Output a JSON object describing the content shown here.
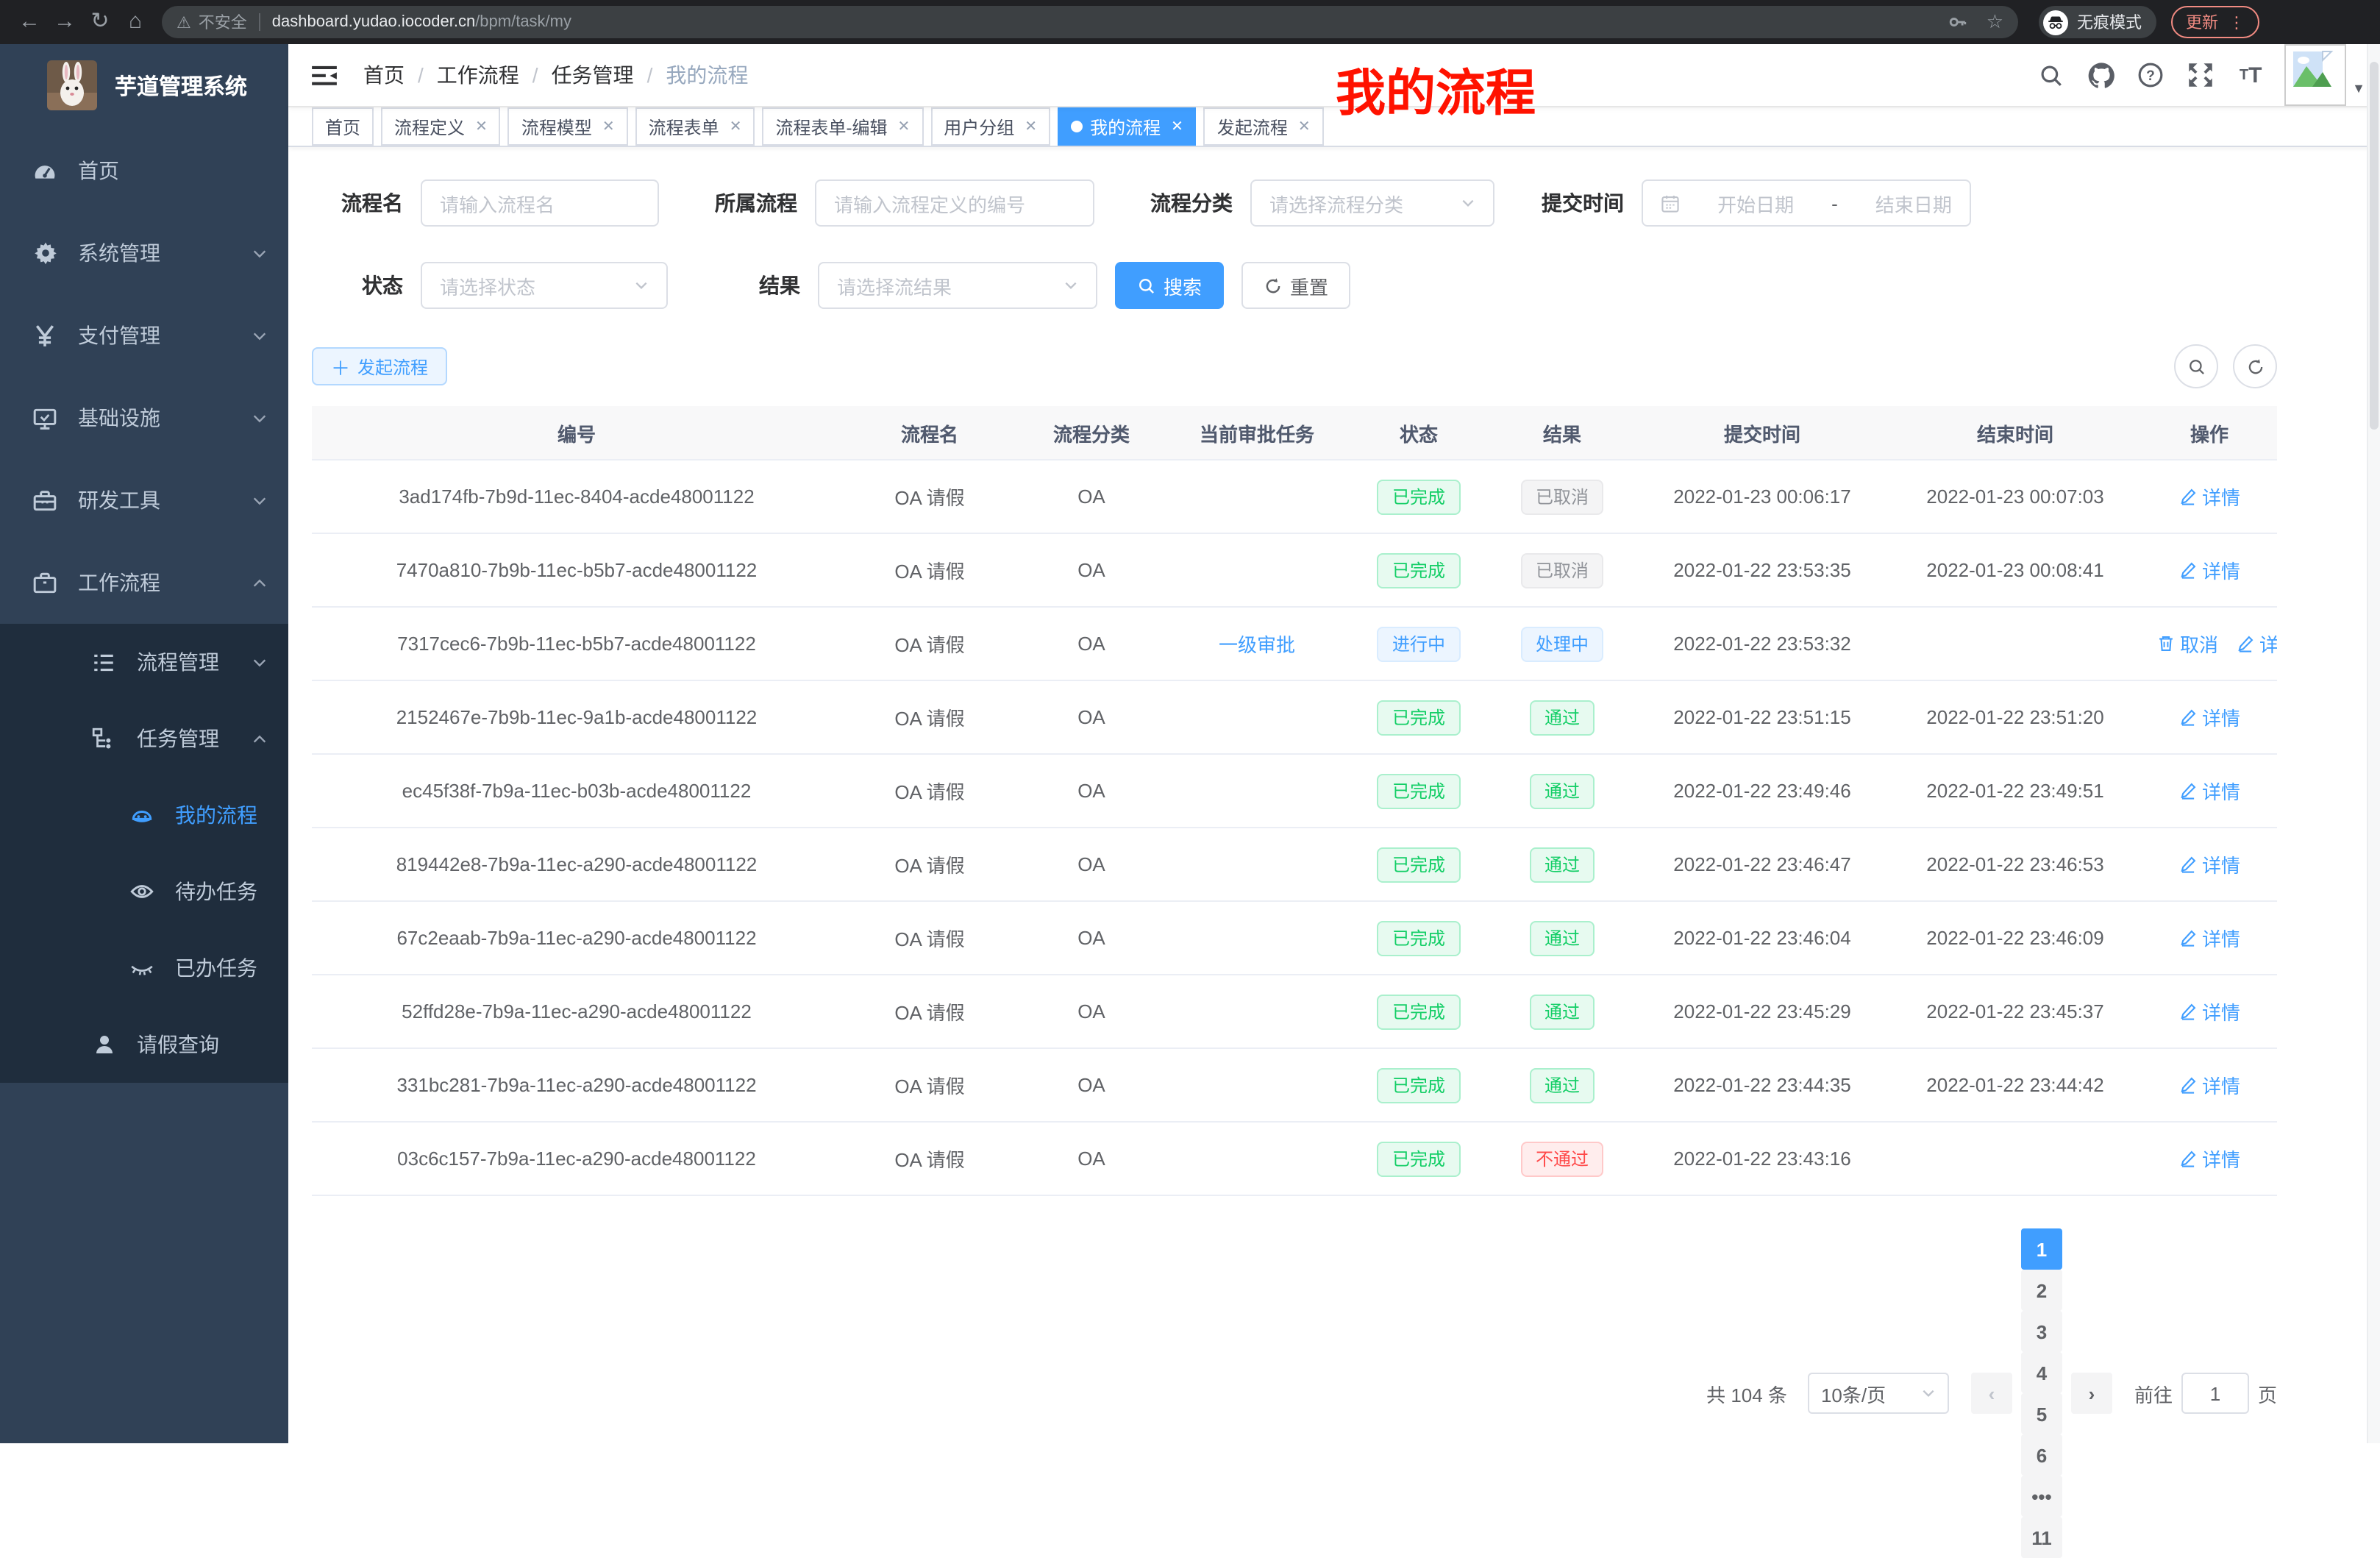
{
  "browser": {
    "security_label": "不安全",
    "url_host": "dashboard.yudao.iocoder.cn",
    "url_path": "/bpm/task/my",
    "incognito_label": "无痕模式",
    "update_label": "更新"
  },
  "sidebar": {
    "title": "芋道管理系统",
    "menu": [
      {
        "label": "首页",
        "icon": "dashboard-icon",
        "level": 1
      },
      {
        "label": "系统管理",
        "icon": "gear-icon",
        "level": 1,
        "chevron": "down"
      },
      {
        "label": "支付管理",
        "icon": "yen-icon",
        "level": 1,
        "chevron": "down"
      },
      {
        "label": "基础设施",
        "icon": "monitor-icon",
        "level": 1,
        "chevron": "down"
      },
      {
        "label": "研发工具",
        "icon": "toolbox-icon",
        "level": 1,
        "chevron": "down"
      },
      {
        "label": "工作流程",
        "icon": "briefcase-icon",
        "level": 1,
        "chevron": "up"
      },
      {
        "label": "流程管理",
        "icon": "list-icon",
        "level": 2,
        "chevron": "down",
        "sub": true
      },
      {
        "label": "任务管理",
        "icon": "flow-icon",
        "level": 2,
        "chevron": "up",
        "sub": true
      },
      {
        "label": "我的流程",
        "icon": "robot-icon",
        "level": 3,
        "sub": true,
        "active": true
      },
      {
        "label": "待办任务",
        "icon": "eye-open-icon",
        "level": 3,
        "sub": true
      },
      {
        "label": "已办任务",
        "icon": "eye-closed-icon",
        "level": 3,
        "sub": true
      },
      {
        "label": "请假查询",
        "icon": "user-icon",
        "level": 2,
        "sub": true
      }
    ]
  },
  "header": {
    "breadcrumb": [
      "首页",
      "工作流程",
      "任务管理",
      "我的流程"
    ],
    "annotation": "我的流程"
  },
  "tabs": [
    {
      "label": "首页",
      "closable": false,
      "active": false
    },
    {
      "label": "流程定义",
      "closable": true,
      "active": false
    },
    {
      "label": "流程模型",
      "closable": true,
      "active": false
    },
    {
      "label": "流程表单",
      "closable": true,
      "active": false
    },
    {
      "label": "流程表单-编辑",
      "closable": true,
      "active": false
    },
    {
      "label": "用户分组",
      "closable": true,
      "active": false
    },
    {
      "label": "我的流程",
      "closable": true,
      "active": true
    },
    {
      "label": "发起流程",
      "closable": true,
      "active": false
    }
  ],
  "filters": {
    "name_label": "流程名",
    "name_placeholder": "请输入流程名",
    "parent_label": "所属流程",
    "parent_placeholder": "请输入流程定义的编号",
    "category_label": "流程分类",
    "category_placeholder": "请选择流程分类",
    "time_label": "提交时间",
    "time_start_placeholder": "开始日期",
    "time_separator": "-",
    "time_end_placeholder": "结束日期",
    "status_label": "状态",
    "status_placeholder": "请选择状态",
    "result_label": "结果",
    "result_placeholder": "请选择流结果",
    "search_label": "搜索",
    "reset_label": "重置"
  },
  "toolbar": {
    "create_label": "发起流程"
  },
  "table": {
    "columns": [
      "编号",
      "流程名",
      "流程分类",
      "当前审批任务",
      "状态",
      "结果",
      "提交时间",
      "结束时间",
      "操作"
    ],
    "rows": [
      {
        "id": "3ad174fb-7b9d-11ec-8404-acde48001122",
        "name": "OA 请假",
        "category": "OA",
        "task": "",
        "status": "已完成",
        "status_type": "success",
        "result": "已取消",
        "result_type": "info",
        "submit_time": "2022-01-23 00:06:17",
        "end_time": "2022-01-23 00:07:03",
        "actions": [
          {
            "label": "详情",
            "icon": "edit"
          }
        ]
      },
      {
        "id": "7470a810-7b9b-11ec-b5b7-acde48001122",
        "name": "OA 请假",
        "category": "OA",
        "task": "",
        "status": "已完成",
        "status_type": "success",
        "result": "已取消",
        "result_type": "info",
        "submit_time": "2022-01-22 23:53:35",
        "end_time": "2022-01-23 00:08:41",
        "actions": [
          {
            "label": "详情",
            "icon": "edit"
          }
        ]
      },
      {
        "id": "7317cec6-7b9b-11ec-b5b7-acde48001122",
        "name": "OA 请假",
        "category": "OA",
        "task": "一级审批",
        "status": "进行中",
        "status_type": "primary",
        "result": "处理中",
        "result_type": "primary",
        "submit_time": "2022-01-22 23:53:32",
        "end_time": "",
        "actions": [
          {
            "label": "取消",
            "icon": "trash"
          },
          {
            "label": "详情",
            "icon": "edit"
          }
        ]
      },
      {
        "id": "2152467e-7b9b-11ec-9a1b-acde48001122",
        "name": "OA 请假",
        "category": "OA",
        "task": "",
        "status": "已完成",
        "status_type": "success",
        "result": "通过",
        "result_type": "success",
        "submit_time": "2022-01-22 23:51:15",
        "end_time": "2022-01-22 23:51:20",
        "actions": [
          {
            "label": "详情",
            "icon": "edit"
          }
        ]
      },
      {
        "id": "ec45f38f-7b9a-11ec-b03b-acde48001122",
        "name": "OA 请假",
        "category": "OA",
        "task": "",
        "status": "已完成",
        "status_type": "success",
        "result": "通过",
        "result_type": "success",
        "submit_time": "2022-01-22 23:49:46",
        "end_time": "2022-01-22 23:49:51",
        "actions": [
          {
            "label": "详情",
            "icon": "edit"
          }
        ]
      },
      {
        "id": "819442e8-7b9a-11ec-a290-acde48001122",
        "name": "OA 请假",
        "category": "OA",
        "task": "",
        "status": "已完成",
        "status_type": "success",
        "result": "通过",
        "result_type": "success",
        "submit_time": "2022-01-22 23:46:47",
        "end_time": "2022-01-22 23:46:53",
        "actions": [
          {
            "label": "详情",
            "icon": "edit"
          }
        ]
      },
      {
        "id": "67c2eaab-7b9a-11ec-a290-acde48001122",
        "name": "OA 请假",
        "category": "OA",
        "task": "",
        "status": "已完成",
        "status_type": "success",
        "result": "通过",
        "result_type": "success",
        "submit_time": "2022-01-22 23:46:04",
        "end_time": "2022-01-22 23:46:09",
        "actions": [
          {
            "label": "详情",
            "icon": "edit"
          }
        ]
      },
      {
        "id": "52ffd28e-7b9a-11ec-a290-acde48001122",
        "name": "OA 请假",
        "category": "OA",
        "task": "",
        "status": "已完成",
        "status_type": "success",
        "result": "通过",
        "result_type": "success",
        "submit_time": "2022-01-22 23:45:29",
        "end_time": "2022-01-22 23:45:37",
        "actions": [
          {
            "label": "详情",
            "icon": "edit"
          }
        ]
      },
      {
        "id": "331bc281-7b9a-11ec-a290-acde48001122",
        "name": "OA 请假",
        "category": "OA",
        "task": "",
        "status": "已完成",
        "status_type": "success",
        "result": "通过",
        "result_type": "success",
        "submit_time": "2022-01-22 23:44:35",
        "end_time": "2022-01-22 23:44:42",
        "actions": [
          {
            "label": "详情",
            "icon": "edit"
          }
        ]
      },
      {
        "id": "03c6c157-7b9a-11ec-a290-acde48001122",
        "name": "OA 请假",
        "category": "OA",
        "task": "",
        "status": "已完成",
        "status_type": "success",
        "result": "不通过",
        "result_type": "danger",
        "submit_time": "2022-01-22 23:43:16",
        "end_time": "",
        "actions": [
          {
            "label": "详情",
            "icon": "edit"
          }
        ]
      }
    ]
  },
  "pagination": {
    "total": "共 104 条",
    "page_size": "10条/页",
    "pages": [
      "1",
      "2",
      "3",
      "4",
      "5",
      "6",
      "•••",
      "11"
    ],
    "active_page": "1",
    "goto_label": "前往",
    "goto_value": "1",
    "page_unit": "页"
  },
  "colors": {
    "accent": "#409eff",
    "sidebar_bg": "#304156",
    "submenu_bg": "#1f2d3d",
    "success": "#13ce66",
    "danger": "#ff4949",
    "info": "#909399",
    "annotation_red": "#ff1200"
  }
}
